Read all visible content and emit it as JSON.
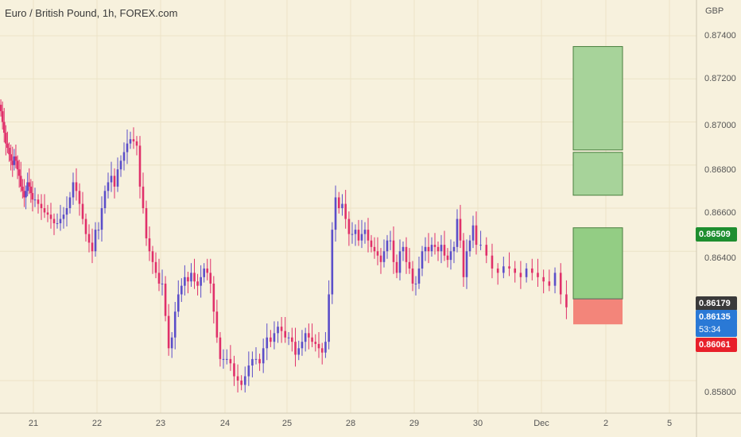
{
  "header": {
    "title": "Euro / British Pound, 1h, FOREX.com",
    "currency": "GBP"
  },
  "colors": {
    "background": "#f7f1dd",
    "up": "#5b4ec9",
    "down": "#e0306a",
    "profit": "#a7d39a",
    "loss": "#f3857a"
  },
  "chart_data": {
    "type": "candlestick",
    "y_ticks": [
      "0.87400",
      "0.87200",
      "0.87000",
      "0.86800",
      "0.86600",
      "0.86400",
      "0.85800"
    ],
    "y_tick_values": [
      0.874,
      0.872,
      0.87,
      0.868,
      0.866,
      0.864,
      0.858
    ],
    "x_ticks": [
      "21",
      "22",
      "23",
      "24",
      "25",
      "28",
      "29",
      "30",
      "Dec",
      "2",
      "5"
    ],
    "series": [
      {
        "day": "21",
        "values": [
          0.8705,
          0.87,
          0.8695,
          0.869,
          0.8688,
          0.8685,
          0.8682,
          0.868,
          0.8684,
          0.8682,
          0.8678,
          0.8675,
          0.867,
          0.8668,
          0.8665,
          0.8668,
          0.8672,
          0.867,
          0.8667,
          0.8664
        ]
      },
      {
        "day": "22",
        "values": [
          0.8664,
          0.8662,
          0.866,
          0.8658,
          0.8657,
          0.8655,
          0.8653,
          0.8653,
          0.8655,
          0.8657,
          0.866,
          0.8665,
          0.8672,
          0.8668,
          0.8662,
          0.8655,
          0.8648,
          0.8644,
          0.864,
          0.865
        ]
      },
      {
        "day": "23",
        "values": [
          0.865,
          0.866,
          0.8668,
          0.8672,
          0.8675,
          0.867,
          0.8678,
          0.8682,
          0.8686,
          0.869,
          0.8692,
          0.8691,
          0.8689,
          0.867,
          0.866,
          0.8646,
          0.864,
          0.8635,
          0.863,
          0.8625
        ]
      },
      {
        "day": "24",
        "values": [
          0.8625,
          0.861,
          0.8595,
          0.86,
          0.8612,
          0.862,
          0.8624,
          0.8628,
          0.8626,
          0.863,
          0.8626,
          0.8624,
          0.8628,
          0.8632,
          0.863,
          0.8625,
          0.8612,
          0.86,
          0.859,
          0.859
        ]
      },
      {
        "day": "25",
        "values": [
          0.859,
          0.8588,
          0.8582,
          0.858,
          0.8578,
          0.8582,
          0.8587,
          0.859,
          0.859,
          0.8588,
          0.8595,
          0.86,
          0.8598,
          0.8602,
          0.8605,
          0.8603,
          0.86
        ]
      },
      {
        "day": "28",
        "values": [
          0.86,
          0.8598,
          0.8592,
          0.8595,
          0.8598,
          0.8602,
          0.86,
          0.8598,
          0.8597,
          0.8595,
          0.8593,
          0.8598,
          0.862,
          0.865,
          0.8665,
          0.866,
          0.8662,
          0.8655,
          0.8648
        ]
      },
      {
        "day": "29",
        "values": [
          0.8648,
          0.865,
          0.8645,
          0.8648,
          0.865,
          0.8645,
          0.8642,
          0.864,
          0.8638,
          0.8635,
          0.864,
          0.8645,
          0.8645,
          0.8635,
          0.863,
          0.864,
          0.8642,
          0.8635,
          0.8632,
          0.8625
        ]
      },
      {
        "day": "30",
        "values": [
          0.8625,
          0.8632,
          0.864,
          0.8642,
          0.864,
          0.8643,
          0.8642,
          0.864,
          0.8643,
          0.8638,
          0.8636,
          0.864,
          0.8642,
          0.8655,
          0.8645,
          0.8628,
          0.864,
          0.8645,
          0.8652,
          0.8643
        ]
      },
      {
        "day": "Dec",
        "values": [
          0.8643,
          0.8638,
          0.8632,
          0.863,
          0.8633,
          0.8632,
          0.863,
          0.8628,
          0.8632,
          0.863,
          0.8628,
          0.8626,
          0.8624,
          0.863,
          0.862,
          0.8614
        ]
      }
    ],
    "position": {
      "target_2": 0.8735,
      "target_1": 0.8687,
      "mid": 0.8666,
      "entry": 0.86509,
      "stop_upper": 0.86179,
      "stop": 0.86061
    },
    "price_labels": {
      "entry": "0.86509",
      "current": "0.86179",
      "last": "0.86135",
      "countdown": "53:34",
      "stop": "0.86061"
    }
  }
}
